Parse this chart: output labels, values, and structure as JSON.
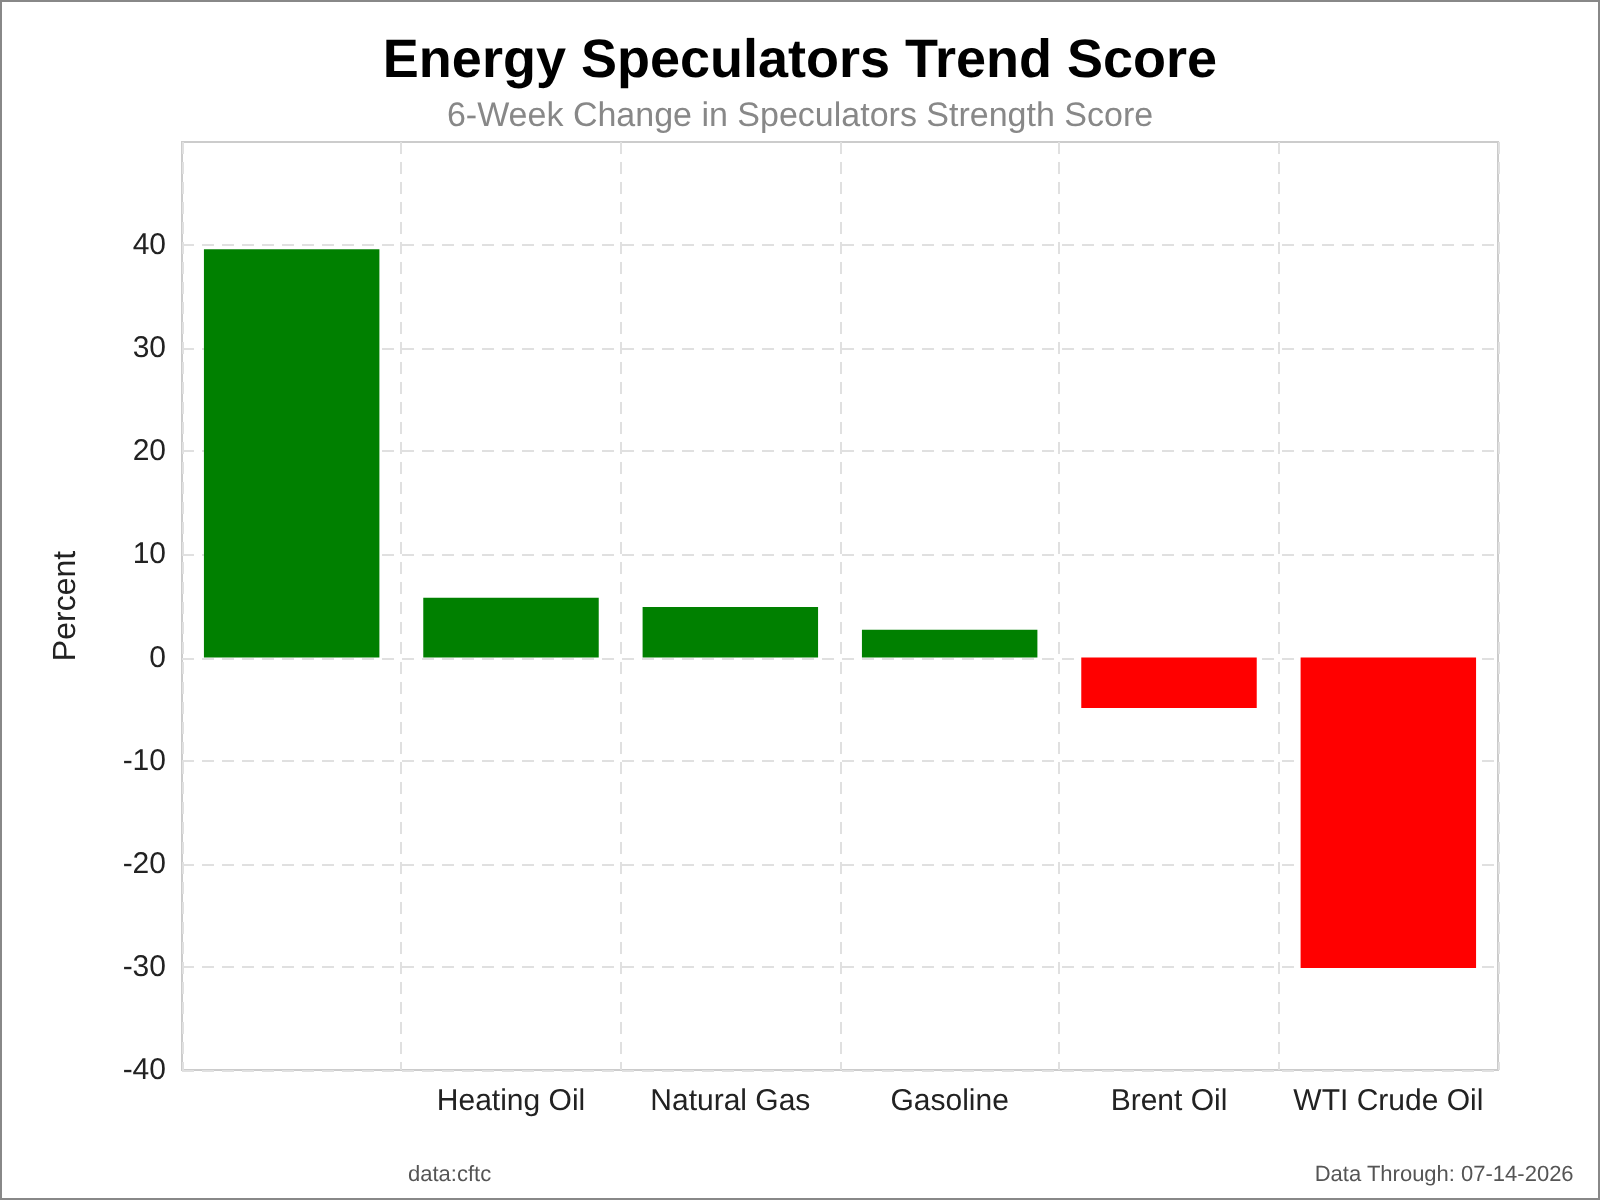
{
  "chart_data": {
    "type": "bar",
    "title": "Energy Speculators Trend Score",
    "subtitle": "6-Week Change in Speculators Strength Score",
    "ylabel": "Percent",
    "categories": [
      null,
      "Heating Oil",
      "Natural Gas",
      "Gasoline",
      "Brent Oil",
      "WTI Crude Oil"
    ],
    "values": [
      39.6,
      5.8,
      4.9,
      2.7,
      -4.9,
      -30.1
    ],
    "colors": [
      "#008000",
      "#008000",
      "#008000",
      "#008000",
      "#ff0000",
      "#ff0000"
    ],
    "ylim": [
      -40,
      50
    ],
    "yticks": [
      -40,
      -30,
      -20,
      -10,
      0,
      10,
      20,
      30,
      40
    ],
    "grid": true,
    "annotations": [
      "data:cftc",
      "Data Through: 07-14-2026"
    ]
  }
}
